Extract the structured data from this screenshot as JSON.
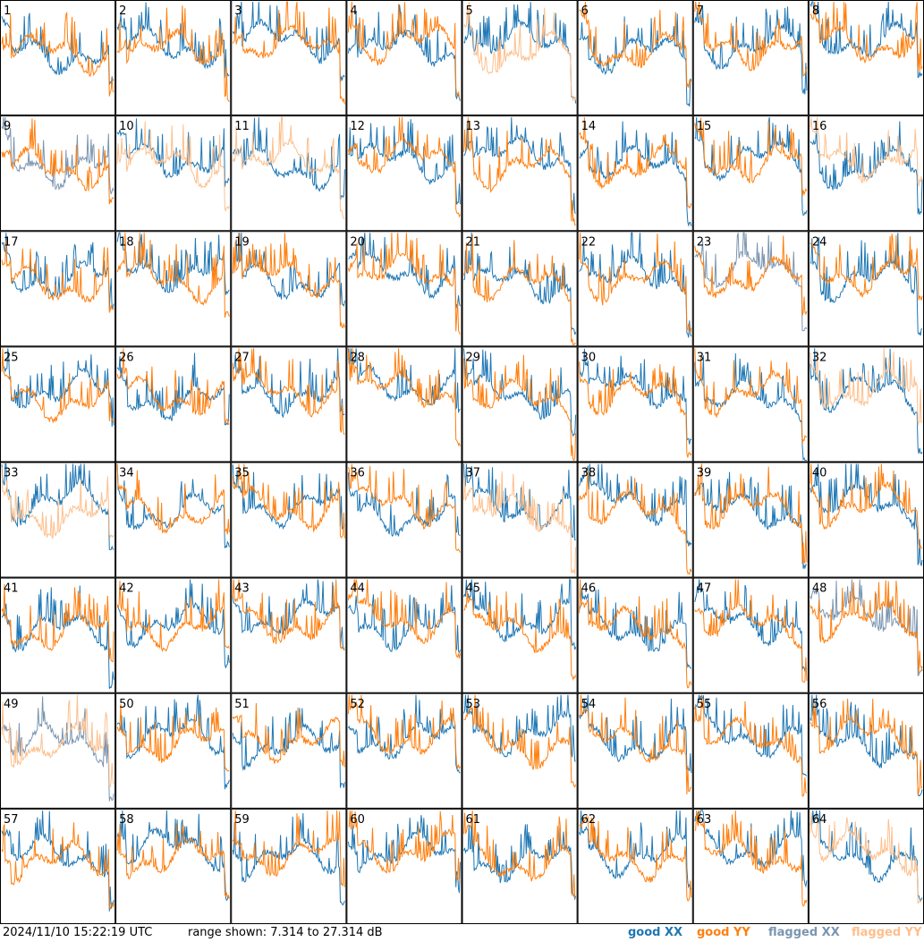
{
  "footer": {
    "timestamp": "2024/11/10 15:22:19 UTC",
    "range_text": "range shown: 7.314 to 27.314 dB",
    "legend": [
      {
        "label": "good XX",
        "color": "#1f77b4"
      },
      {
        "label": "good YY",
        "color": "#ff7f0e"
      },
      {
        "label": "flagged XX",
        "color": "#7b95b0"
      },
      {
        "label": "flagged YY",
        "color": "#fdbf8c"
      }
    ]
  },
  "chart_data": {
    "type": "line",
    "title": "",
    "xlabel": "",
    "ylabel": "",
    "units": "dB",
    "ylim": [
      7.314,
      27.314
    ],
    "grid": {
      "rows": 8,
      "cols": 8
    },
    "series_names": [
      "good XX",
      "good YY",
      "flagged XX",
      "flagged YY"
    ],
    "colors": {
      "good_xx": "#1f77b4",
      "good_yy": "#ff7f0e",
      "flagged_xx": "#7b95b0",
      "flagged_yy": "#fdbf8c"
    },
    "panels": [
      {
        "id": "1",
        "xx": "good",
        "yy": "good"
      },
      {
        "id": "2",
        "xx": "good",
        "yy": "good"
      },
      {
        "id": "3",
        "xx": "good",
        "yy": "good"
      },
      {
        "id": "4",
        "xx": "good",
        "yy": "good"
      },
      {
        "id": "5",
        "xx": "good",
        "yy": "flagged"
      },
      {
        "id": "6",
        "xx": "good",
        "yy": "good"
      },
      {
        "id": "7",
        "xx": "good",
        "yy": "good"
      },
      {
        "id": "8",
        "xx": "good",
        "yy": "good"
      },
      {
        "id": "9",
        "xx": "flagged",
        "yy": "good"
      },
      {
        "id": "10",
        "xx": "good",
        "yy": "flagged"
      },
      {
        "id": "11",
        "xx": "good",
        "yy": "flagged"
      },
      {
        "id": "12",
        "xx": "good",
        "yy": "good"
      },
      {
        "id": "13",
        "xx": "good",
        "yy": "good"
      },
      {
        "id": "14",
        "xx": "good",
        "yy": "good"
      },
      {
        "id": "15",
        "xx": "good",
        "yy": "good"
      },
      {
        "id": "16",
        "xx": "good",
        "yy": "flagged"
      },
      {
        "id": "17",
        "xx": "good",
        "yy": "good"
      },
      {
        "id": "18",
        "xx": "good",
        "yy": "good"
      },
      {
        "id": "19",
        "xx": "good",
        "yy": "good"
      },
      {
        "id": "20",
        "xx": "good",
        "yy": "good"
      },
      {
        "id": "21",
        "xx": "good",
        "yy": "good"
      },
      {
        "id": "22",
        "xx": "good",
        "yy": "good"
      },
      {
        "id": "23",
        "xx": "flagged",
        "yy": "good"
      },
      {
        "id": "24",
        "xx": "good",
        "yy": "good"
      },
      {
        "id": "25",
        "xx": "good",
        "yy": "good"
      },
      {
        "id": "26",
        "xx": "good",
        "yy": "good"
      },
      {
        "id": "27",
        "xx": "good",
        "yy": "good"
      },
      {
        "id": "28",
        "xx": "good",
        "yy": "good"
      },
      {
        "id": "29",
        "xx": "good",
        "yy": "good"
      },
      {
        "id": "30",
        "xx": "good",
        "yy": "good"
      },
      {
        "id": "31",
        "xx": "good",
        "yy": "good"
      },
      {
        "id": "32",
        "xx": "good",
        "yy": "flagged"
      },
      {
        "id": "33",
        "xx": "good",
        "yy": "flagged"
      },
      {
        "id": "34",
        "xx": "good",
        "yy": "good"
      },
      {
        "id": "35",
        "xx": "good",
        "yy": "good"
      },
      {
        "id": "36",
        "xx": "good",
        "yy": "good"
      },
      {
        "id": "37",
        "xx": "good",
        "yy": "flagged"
      },
      {
        "id": "38",
        "xx": "good",
        "yy": "good"
      },
      {
        "id": "39",
        "xx": "good",
        "yy": "good"
      },
      {
        "id": "40",
        "xx": "good",
        "yy": "good"
      },
      {
        "id": "41",
        "xx": "good",
        "yy": "good"
      },
      {
        "id": "42",
        "xx": "good",
        "yy": "good"
      },
      {
        "id": "43",
        "xx": "good",
        "yy": "good"
      },
      {
        "id": "44",
        "xx": "good",
        "yy": "good"
      },
      {
        "id": "45",
        "xx": "good",
        "yy": "good"
      },
      {
        "id": "46",
        "xx": "good",
        "yy": "good"
      },
      {
        "id": "47",
        "xx": "good",
        "yy": "good"
      },
      {
        "id": "48",
        "xx": "flagged",
        "yy": "good"
      },
      {
        "id": "49",
        "xx": "flagged",
        "yy": "flagged"
      },
      {
        "id": "50",
        "xx": "good",
        "yy": "good"
      },
      {
        "id": "51",
        "xx": "good",
        "yy": "good"
      },
      {
        "id": "52",
        "xx": "good",
        "yy": "good"
      },
      {
        "id": "53",
        "xx": "good",
        "yy": "good"
      },
      {
        "id": "54",
        "xx": "good",
        "yy": "good"
      },
      {
        "id": "55",
        "xx": "good",
        "yy": "good"
      },
      {
        "id": "56",
        "xx": "good",
        "yy": "good"
      },
      {
        "id": "57",
        "xx": "good",
        "yy": "good"
      },
      {
        "id": "58",
        "xx": "good",
        "yy": "good"
      },
      {
        "id": "59",
        "xx": "good",
        "yy": "good"
      },
      {
        "id": "60",
        "xx": "good",
        "yy": "good"
      },
      {
        "id": "61",
        "xx": "good",
        "yy": "good"
      },
      {
        "id": "62",
        "xx": "good",
        "yy": "good"
      },
      {
        "id": "63",
        "xx": "good",
        "yy": "good"
      },
      {
        "id": "64",
        "xx": "good",
        "yy": "flagged"
      }
    ]
  }
}
